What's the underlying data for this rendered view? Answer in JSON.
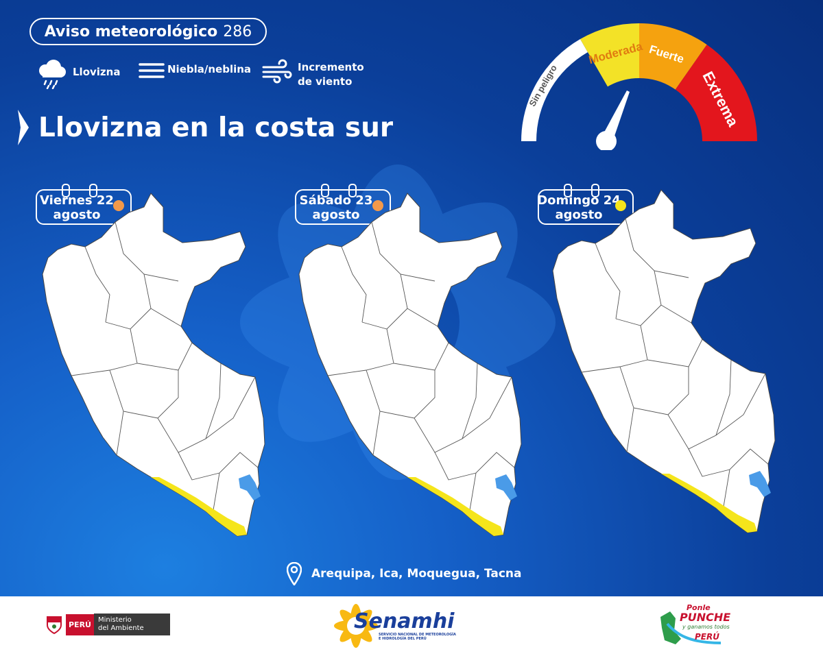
{
  "header": {
    "notice_label": "Aviso meteorológico",
    "notice_number": "286"
  },
  "legend": [
    {
      "icon": "drizzle-cloud-icon",
      "label": "Llovizna"
    },
    {
      "icon": "fog-lines-icon",
      "label": "Niebla/neblina"
    },
    {
      "icon": "wind-icon",
      "label_line1": "Incremento",
      "label_line2": "de viento"
    }
  ],
  "title": "Llovizna en la costa sur",
  "gauge": {
    "levels": [
      "Sin peligro",
      "Moderada",
      "Fuerte",
      "Extrema"
    ],
    "colors": [
      "#ffffff",
      "#f3e227",
      "#f5a20f",
      "#e3161d"
    ],
    "needle_level": "Fuerte"
  },
  "days": [
    {
      "line1": "Viernes 22",
      "line2": "agosto",
      "dot_color": "#f2994a"
    },
    {
      "line1": "Sábado 23",
      "line2": "agosto",
      "dot_color": "#f2994a"
    },
    {
      "line1": "Domingo 24",
      "line2": "agosto",
      "dot_color": "#f5e51b"
    }
  ],
  "map_colors": {
    "land": "#ffffff",
    "alert": "#f5e51b",
    "lake": "#4a9be8"
  },
  "locations": "Arequipa, Ica, Moquegua, Tacna",
  "footer": {
    "peru_label": "PERÚ",
    "ministry_line1": "Ministerio",
    "ministry_line2": "del Ambiente",
    "senamhi_name": "Senamhi",
    "senamhi_sub1": "SERVICIO NACIONAL DE METEOROLOGÍA",
    "senamhi_sub2": "E HIDROLOGÍA DEL PERÚ",
    "punche_line1": "Ponle",
    "punche_line2": "PUNCHE",
    "punche_line3": "y ganamos todos",
    "punche_line4": "PERÚ"
  }
}
